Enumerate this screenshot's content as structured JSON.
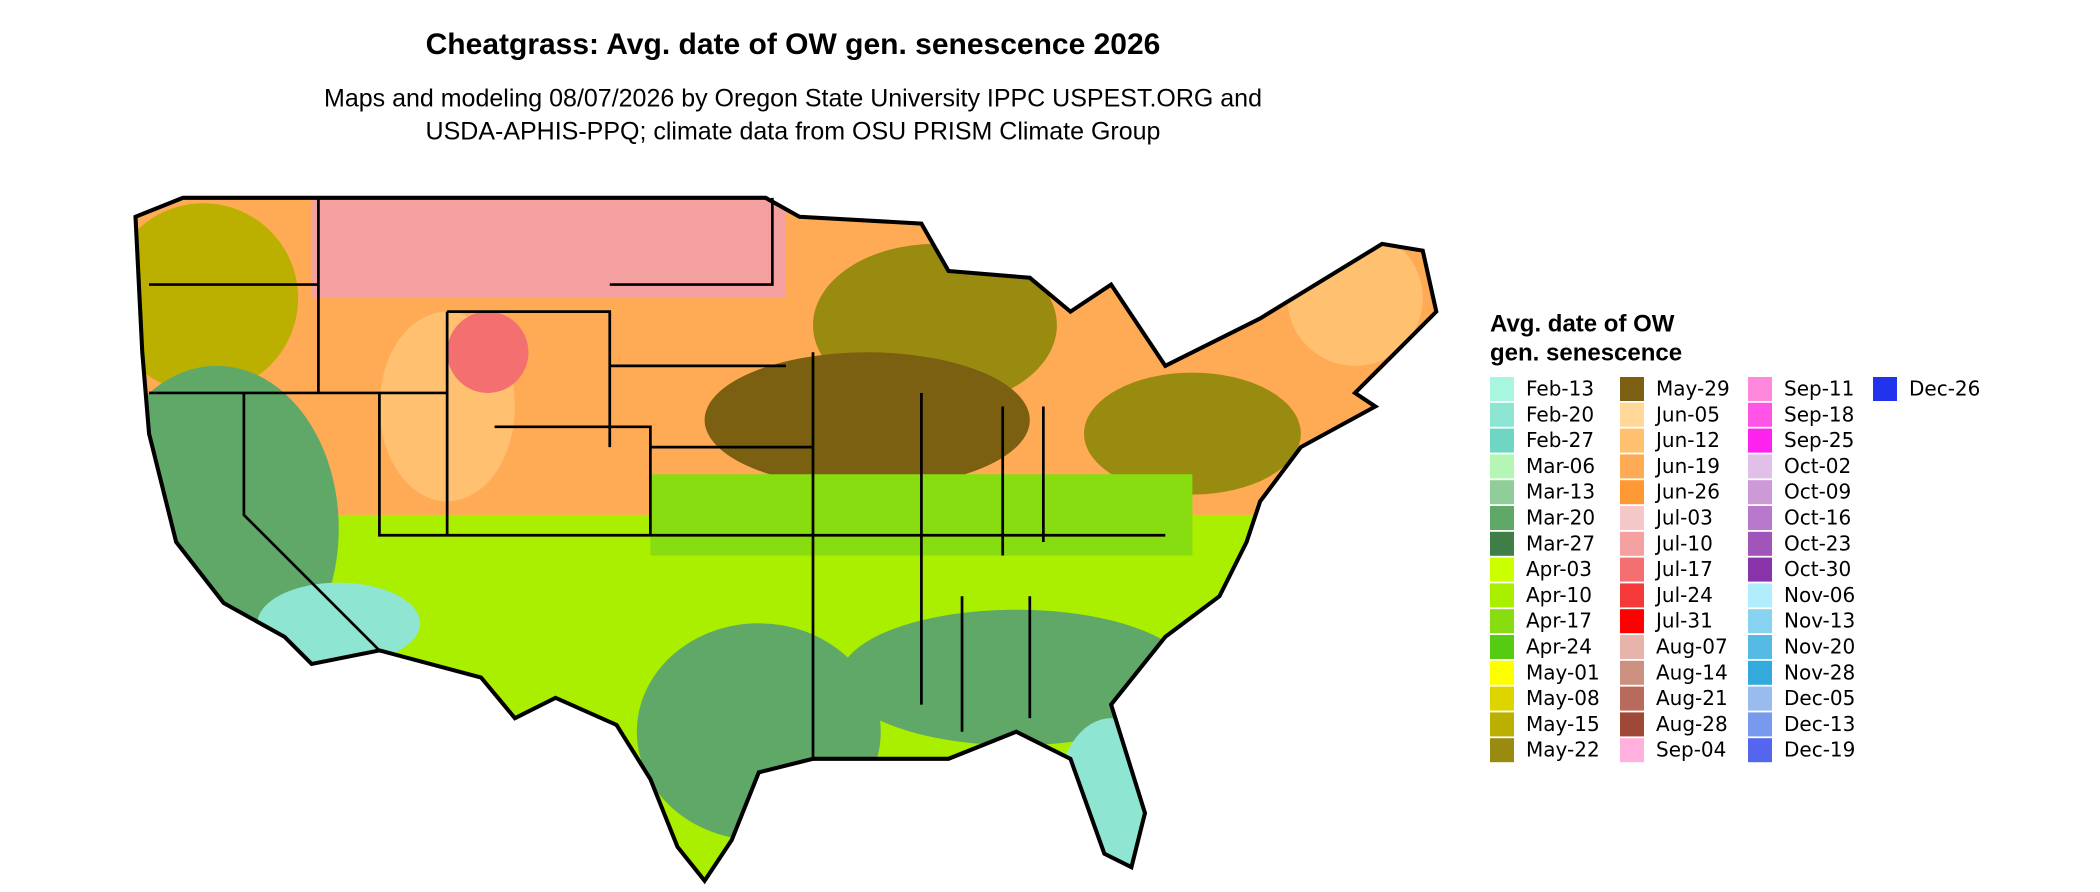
{
  "header": {
    "title": "Cheatgrass: Avg. date of OW gen. senescence 2026",
    "subtitle_lines": [
      "Maps and modeling 08/07/2026 by Oregon State University IPPC USPEST.ORG and",
      "USDA-APHIS-PPQ; climate data from OSU PRISM Climate Group"
    ]
  },
  "legend": {
    "title_lines": [
      "Avg. date of OW",
      "gen. senescence"
    ],
    "entries": [
      {
        "label": "Feb-13",
        "color": "#a8f5e0"
      },
      {
        "label": "Feb-20",
        "color": "#8ee6d2"
      },
      {
        "label": "Feb-27",
        "color": "#6fd6c4"
      },
      {
        "label": "Mar-06",
        "color": "#b5f5b5"
      },
      {
        "label": "Mar-13",
        "color": "#8fce98"
      },
      {
        "label": "Mar-20",
        "color": "#5fa868"
      },
      {
        "label": "Mar-27",
        "color": "#3f7f47"
      },
      {
        "label": "Apr-03",
        "color": "#ccff00"
      },
      {
        "label": "Apr-10",
        "color": "#aaee00"
      },
      {
        "label": "Apr-17",
        "color": "#88dd11"
      },
      {
        "label": "Apr-24",
        "color": "#55cc11"
      },
      {
        "label": "May-01",
        "color": "#ffff00"
      },
      {
        "label": "May-08",
        "color": "#ddd400"
      },
      {
        "label": "May-15",
        "color": "#bbb000"
      },
      {
        "label": "May-22",
        "color": "#998a10"
      },
      {
        "label": "May-29",
        "color": "#7a6010"
      },
      {
        "label": "Jun-05",
        "color": "#ffd898"
      },
      {
        "label": "Jun-12",
        "color": "#ffc070"
      },
      {
        "label": "Jun-19",
        "color": "#ffaa55"
      },
      {
        "label": "Jun-26",
        "color": "#ff9933"
      },
      {
        "label": "Jul-03",
        "color": "#f4c8c8"
      },
      {
        "label": "Jul-10",
        "color": "#f4a0a0"
      },
      {
        "label": "Jul-17",
        "color": "#f47070"
      },
      {
        "label": "Jul-24",
        "color": "#f43a3a"
      },
      {
        "label": "Jul-31",
        "color": "#ff0000"
      },
      {
        "label": "Aug-07",
        "color": "#e6b4a8"
      },
      {
        "label": "Aug-14",
        "color": "#cc9080"
      },
      {
        "label": "Aug-21",
        "color": "#b86a5c"
      },
      {
        "label": "Aug-28",
        "color": "#a04838"
      },
      {
        "label": "Sep-04",
        "color": "#ffb0dc"
      },
      {
        "label": "Sep-11",
        "color": "#ff88dd"
      },
      {
        "label": "Sep-18",
        "color": "#ff55e6"
      },
      {
        "label": "Sep-25",
        "color": "#ff22ee"
      },
      {
        "label": "Oct-02",
        "color": "#e0c0e8"
      },
      {
        "label": "Oct-09",
        "color": "#cc9ad6"
      },
      {
        "label": "Oct-16",
        "color": "#b878cc"
      },
      {
        "label": "Oct-23",
        "color": "#a055bb"
      },
      {
        "label": "Oct-30",
        "color": "#8833aa"
      },
      {
        "label": "Nov-06",
        "color": "#b0eeff"
      },
      {
        "label": "Nov-13",
        "color": "#88d4f0"
      },
      {
        "label": "Nov-20",
        "color": "#55bbe4"
      },
      {
        "label": "Nov-28",
        "color": "#33aadd"
      },
      {
        "label": "Dec-05",
        "color": "#99bbee"
      },
      {
        "label": "Dec-13",
        "color": "#7799ee"
      },
      {
        "label": "Dec-19",
        "color": "#5566ee"
      },
      {
        "label": "Dec-26",
        "color": "#2233ee"
      }
    ]
  }
}
